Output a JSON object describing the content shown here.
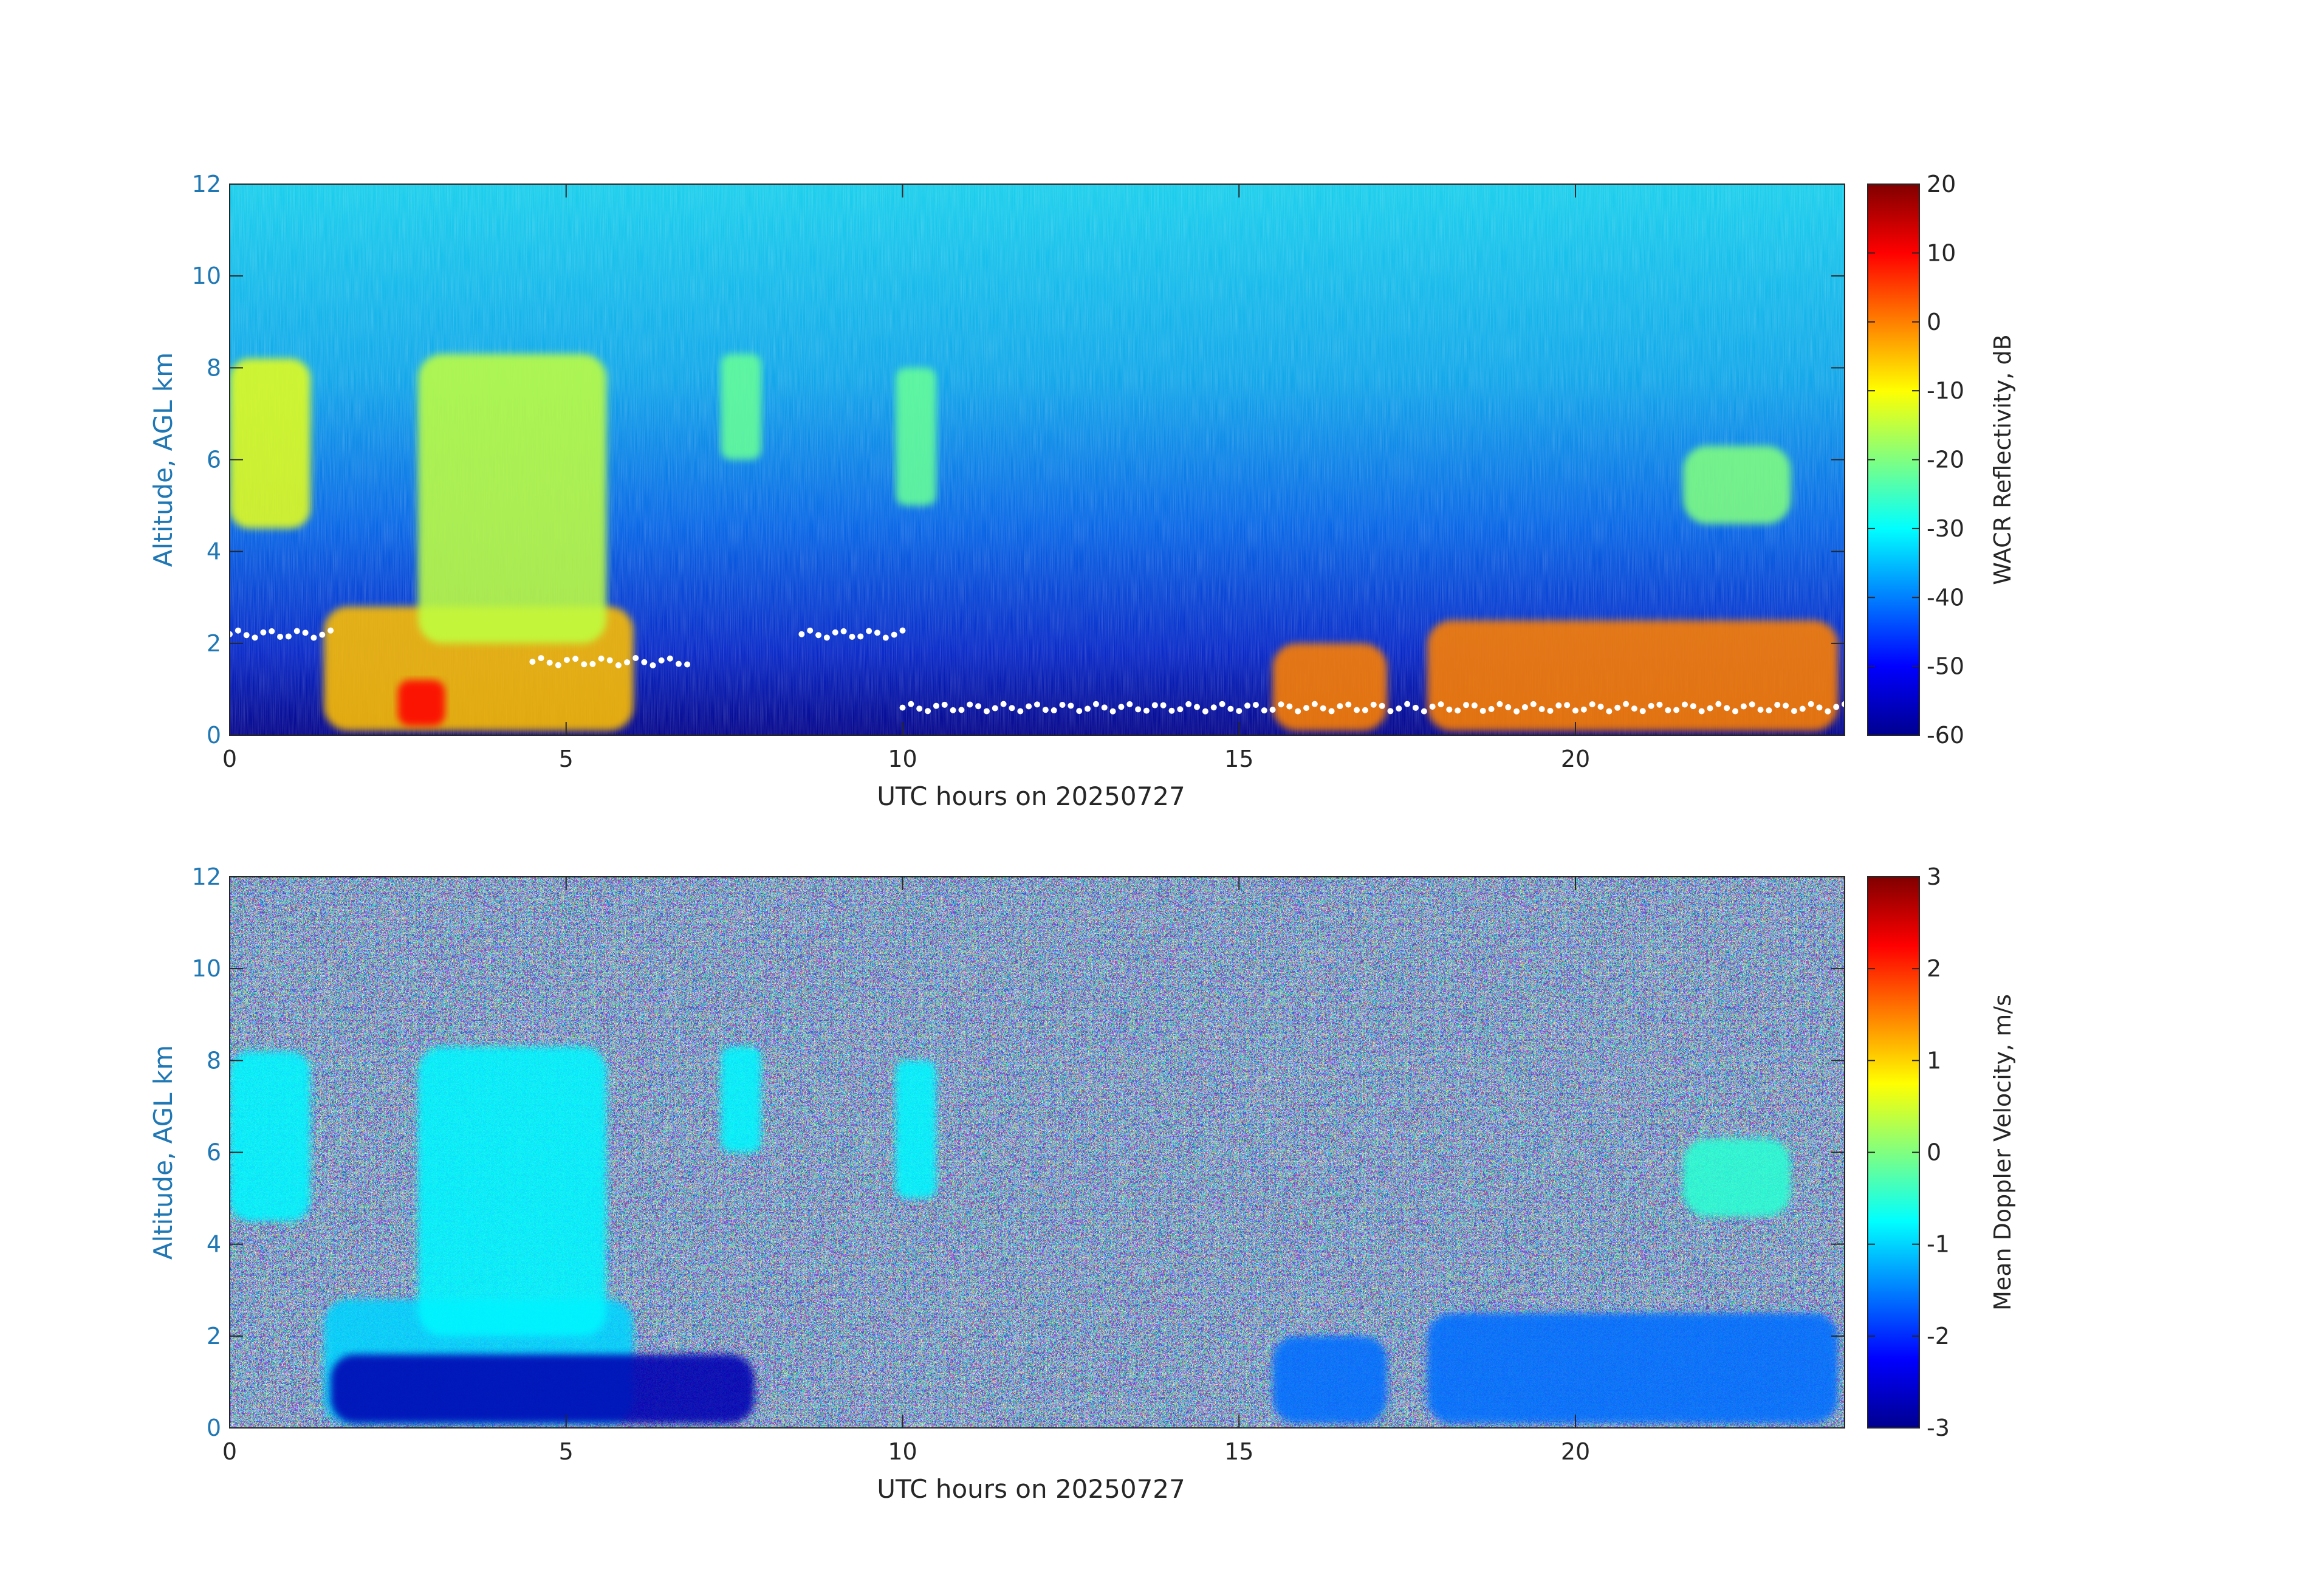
{
  "figure": {
    "axis_color": "#1f77b4",
    "text_color": "#262626",
    "colormap": "jet"
  },
  "chart_data": [
    {
      "type": "heatmap",
      "title": "",
      "xlabel": "UTC hours on 20250727",
      "ylabel": "Altitude, AGL km",
      "xlim": [
        0,
        24
      ],
      "ylim": [
        0,
        12
      ],
      "x_ticks": [
        "0",
        "5",
        "10",
        "15",
        "20"
      ],
      "y_ticks": [
        "0",
        "2",
        "4",
        "6",
        "8",
        "10",
        "12"
      ],
      "colorbar": {
        "label": "WACR Reflectivity, dB",
        "range": [
          -60,
          20
        ],
        "ticks": [
          "-60",
          "-50",
          "-40",
          "-30",
          "-20",
          "-10",
          "0",
          "10",
          "20"
        ]
      },
      "background_value_near_top": -33,
      "background_value_near_surface": -58,
      "echo_features": [
        {
          "x": [
            0.0,
            1.2
          ],
          "y": [
            4.5,
            8.2
          ],
          "value": -12
        },
        {
          "x": [
            1.4,
            6.0
          ],
          "y": [
            0.1,
            2.8
          ],
          "value": -5
        },
        {
          "x": [
            2.5,
            3.2
          ],
          "y": [
            0.2,
            1.2
          ],
          "value": 10
        },
        {
          "x": [
            2.8,
            5.6
          ],
          "y": [
            2.0,
            8.3
          ],
          "value": -15
        },
        {
          "x": [
            7.3,
            7.9
          ],
          "y": [
            6.0,
            8.3
          ],
          "value": -22
        },
        {
          "x": [
            9.9,
            10.5
          ],
          "y": [
            5.0,
            8.0
          ],
          "value": -22
        },
        {
          "x": [
            15.5,
            17.2
          ],
          "y": [
            0.1,
            2.0
          ],
          "value": 0
        },
        {
          "x": [
            17.8,
            23.9
          ],
          "y": [
            0.1,
            2.5
          ],
          "value": 0
        },
        {
          "x": [
            21.6,
            23.2
          ],
          "y": [
            4.6,
            6.3
          ],
          "value": -20
        }
      ],
      "cloud_base_points": [
        {
          "x": [
            0.0,
            1.5
          ],
          "y": 2.2
        },
        {
          "x": [
            4.5,
            6.8
          ],
          "y": 1.6
        },
        {
          "x": [
            8.5,
            10.0
          ],
          "y": 2.2
        },
        {
          "x": [
            10.0,
            24.0
          ],
          "y": 0.6
        }
      ]
    },
    {
      "type": "heatmap",
      "title": "",
      "xlabel": "UTC hours on 20250727",
      "ylabel": "Altitude, AGL km",
      "xlim": [
        0,
        24
      ],
      "ylim": [
        0,
        12
      ],
      "x_ticks": [
        "0",
        "5",
        "10",
        "15",
        "20"
      ],
      "y_ticks": [
        "0",
        "2",
        "4",
        "6",
        "8",
        "10",
        "12"
      ],
      "colorbar": {
        "label": "Mean Doppler Velocity, m/s",
        "range": [
          -3,
          3
        ],
        "ticks": [
          "-3",
          "-2",
          "-1",
          "0",
          "1",
          "2",
          "3"
        ]
      },
      "background": "random noise spanning -3 to 3",
      "echo_features": [
        {
          "x": [
            0.0,
            1.2
          ],
          "y": [
            4.5,
            8.2
          ],
          "value": -0.8
        },
        {
          "x": [
            1.4,
            6.0
          ],
          "y": [
            0.1,
            2.8
          ],
          "value": -1.0
        },
        {
          "x": [
            1.5,
            7.8
          ],
          "y": [
            0.1,
            1.6
          ],
          "value": -2.7
        },
        {
          "x": [
            2.8,
            5.6
          ],
          "y": [
            2.0,
            8.3
          ],
          "value": -0.8
        },
        {
          "x": [
            7.3,
            7.9
          ],
          "y": [
            6.0,
            8.3
          ],
          "value": -0.8
        },
        {
          "x": [
            9.9,
            10.5
          ],
          "y": [
            5.0,
            8.0
          ],
          "value": -0.8
        },
        {
          "x": [
            15.5,
            17.2
          ],
          "y": [
            0.1,
            2.0
          ],
          "value": -1.6
        },
        {
          "x": [
            17.8,
            23.9
          ],
          "y": [
            0.1,
            2.5
          ],
          "value": -1.6
        },
        {
          "x": [
            21.6,
            23.2
          ],
          "y": [
            4.6,
            6.3
          ],
          "value": -0.5
        }
      ]
    }
  ]
}
